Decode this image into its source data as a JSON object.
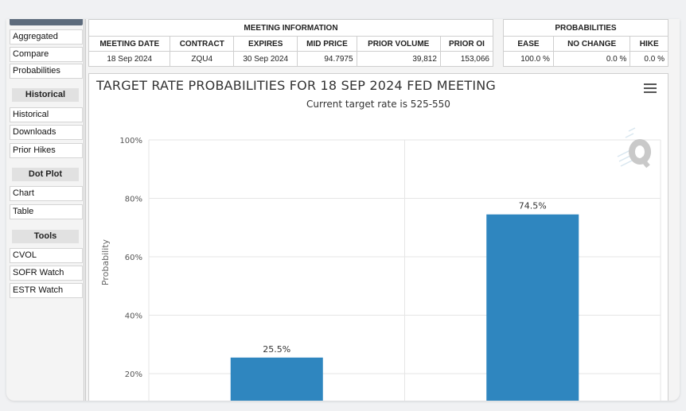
{
  "sidebar": {
    "items_top": [
      "Aggregated",
      "Compare",
      "Probabilities"
    ],
    "sections": [
      {
        "header": "Historical",
        "items": [
          "Historical",
          "Downloads",
          "Prior Hikes"
        ]
      },
      {
        "header": "Dot Plot",
        "items": [
          "Chart",
          "Table"
        ]
      },
      {
        "header": "Tools",
        "items": [
          "CVOL",
          "SOFR Watch",
          "ESTR Watch"
        ]
      }
    ]
  },
  "meeting_info": {
    "title": "MEETING INFORMATION",
    "headers": [
      "MEETING DATE",
      "CONTRACT",
      "EXPIRES",
      "MID PRICE",
      "PRIOR VOLUME",
      "PRIOR OI"
    ],
    "row": [
      "18 Sep 2024",
      "ZQU4",
      "30 Sep 2024",
      "94.7975",
      "39,812",
      "153,066"
    ]
  },
  "probabilities": {
    "title": "PROBABILITIES",
    "headers": [
      "EASE",
      "NO CHANGE",
      "HIKE"
    ],
    "row": [
      "100.0 %",
      "0.0 %",
      "0.0 %"
    ]
  },
  "chart_data": {
    "type": "bar",
    "title": "TARGET RATE PROBABILITIES FOR 18 SEP 2024 FED MEETING",
    "subtitle": "Current target rate is 525-550",
    "ylabel": "Probability",
    "ylim": [
      0,
      100
    ],
    "yticks": [
      20,
      40,
      60,
      80,
      100
    ],
    "ytick_labels": [
      "20%",
      "40%",
      "60%",
      "80%",
      "100%"
    ],
    "values": [
      25.5,
      74.5
    ],
    "data_labels": [
      "25.5%",
      "74.5%"
    ],
    "bar_color": "#2f86bf",
    "grid": true
  }
}
